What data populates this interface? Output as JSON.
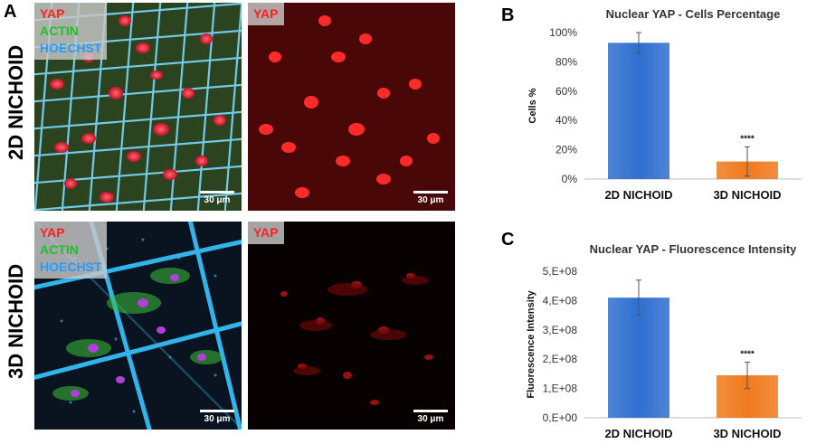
{
  "panels": {
    "a": "A",
    "b": "B",
    "c": "C"
  },
  "rows": {
    "top": "2D NICHOID",
    "bottom": "3D NICHOID"
  },
  "micro": {
    "legend_merged": [
      "YAP",
      "ACTIN",
      "HOECHST"
    ],
    "legend_single": "YAP",
    "scale": "30 μm",
    "colors": {
      "yap": "#ff2020",
      "actin": "#22c02a",
      "hoechst": "#2a9bff",
      "legend_bg": "#c8c8c8"
    }
  },
  "chart_data": [
    {
      "type": "bar",
      "title": "Nuclear YAP - Cells Percentage",
      "ylabel": "Cells %",
      "categories": [
        "2D NICHOID",
        "3D NICHOID"
      ],
      "values": [
        93,
        12
      ],
      "errors": [
        7,
        10
      ],
      "significance": [
        "",
        "****"
      ],
      "ylim": [
        0,
        100
      ],
      "yticks": [
        0,
        20,
        40,
        60,
        80,
        100
      ],
      "ytick_labels": [
        "0%",
        "20%",
        "40%",
        "60%",
        "80%",
        "100%"
      ],
      "colors": [
        "#2f6fd0",
        "#f07a1e"
      ]
    },
    {
      "type": "bar",
      "title": "Nuclear YAP - Fluorescence Intensity",
      "ylabel": "Fluorescence Intensity",
      "categories": [
        "2D NICHOID",
        "3D NICHOID"
      ],
      "values": [
        410000000,
        145000000
      ],
      "errors": [
        60000000,
        45000000
      ],
      "significance": [
        "",
        "****"
      ],
      "ylim": [
        0,
        500000000
      ],
      "yticks": [
        0,
        100000000,
        200000000,
        300000000,
        400000000,
        500000000
      ],
      "ytick_labels": [
        "0,E+00",
        "1,E+08",
        "2,E+08",
        "3,E+08",
        "4,E+08",
        "5,E+08"
      ],
      "colors": [
        "#2f6fd0",
        "#f07a1e"
      ]
    }
  ]
}
